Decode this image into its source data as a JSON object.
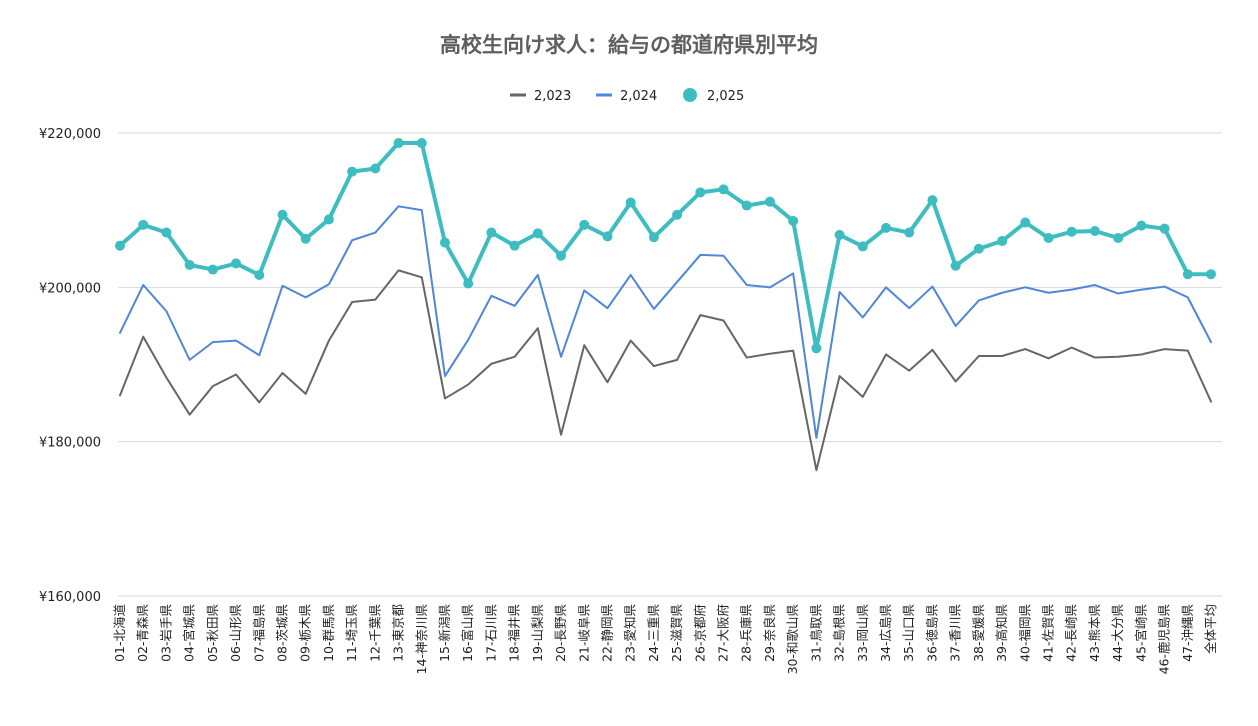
{
  "chart_data": {
    "type": "line",
    "title": "高校生向け求人：給与の都道府県別平均",
    "xlabel": "",
    "ylabel": "",
    "ylim": [
      160000,
      220000
    ],
    "yticks": [
      160000,
      180000,
      200000,
      220000
    ],
    "ytick_labels": [
      "¥160,000",
      "¥180,000",
      "¥200,000",
      "¥220,000"
    ],
    "grid": true,
    "legend_position": "top-center",
    "categories": [
      "01-北海道",
      "02-青森県",
      "03-岩手県",
      "04-宮城県",
      "05-秋田県",
      "06-山形県",
      "07-福島県",
      "08-茨城県",
      "09-栃木県",
      "10-群馬県",
      "11-埼玉県",
      "12-千葉県",
      "13-東京都",
      "14-神奈川県",
      "15-新潟県",
      "16-富山県",
      "17-石川県",
      "18-福井県",
      "19-山梨県",
      "20-長野県",
      "21-岐阜県",
      "22-静岡県",
      "23-愛知県",
      "24-三重県",
      "25-滋賀県",
      "26-京都府",
      "27-大阪府",
      "28-兵庫県",
      "29-奈良県",
      "30-和歌山県",
      "31-鳥取県",
      "32-島根県",
      "33-岡山県",
      "34-広島県",
      "35-山口県",
      "36-徳島県",
      "37-香川県",
      "38-愛媛県",
      "39-高知県",
      "40-福岡県",
      "41-佐賀県",
      "42-長崎県",
      "43-熊本県",
      "44-大分県",
      "45-宮崎県",
      "46-鹿児島県",
      "47-沖縄県",
      "全体平均"
    ],
    "series": [
      {
        "name": "2,023",
        "color": "#666666",
        "marker": false,
        "values": [
          186000,
          193600,
          188300,
          183500,
          187200,
          188700,
          185100,
          188900,
          186200,
          193100,
          198100,
          198400,
          202200,
          201300,
          185600,
          187400,
          190100,
          191000,
          194700,
          180900,
          192500,
          187700,
          193100,
          189800,
          190600,
          196400,
          195700,
          190900,
          191400,
          191800,
          176300,
          188500,
          185800,
          191300,
          189200,
          191900,
          187800,
          191100,
          191100,
          192000,
          190800,
          192200,
          190900,
          191000,
          191300,
          192000,
          191800,
          185200
        ]
      },
      {
        "name": "2,024",
        "color": "#4f86db",
        "marker": false,
        "values": [
          194100,
          200300,
          196900,
          190600,
          192900,
          193100,
          191200,
          200200,
          198700,
          200400,
          206100,
          207100,
          210500,
          210000,
          188500,
          193200,
          198900,
          197600,
          201600,
          191000,
          199600,
          197300,
          201600,
          197200,
          200700,
          204200,
          204100,
          200300,
          200000,
          201800,
          180500,
          199400,
          196100,
          200000,
          197300,
          200100,
          195000,
          198300,
          199300,
          200000,
          199300,
          199700,
          200300,
          199200,
          199700,
          200100,
          198700,
          192900
        ]
      },
      {
        "name": "2,025",
        "color": "#3ebdc1",
        "marker": true,
        "values": [
          205400,
          208100,
          207100,
          202900,
          202300,
          203100,
          201600,
          209400,
          206300,
          208800,
          215000,
          215400,
          218700,
          218700,
          205800,
          200500,
          207100,
          205400,
          207000,
          204100,
          208100,
          206600,
          211000,
          206500,
          209400,
          212300,
          212700,
          210600,
          211100,
          208600,
          192100,
          206800,
          205300,
          207700,
          207100,
          211300,
          202800,
          205000,
          206000,
          208400,
          206400,
          207200,
          207300,
          206400,
          208000,
          207600,
          201700,
          201700
        ]
      }
    ]
  }
}
